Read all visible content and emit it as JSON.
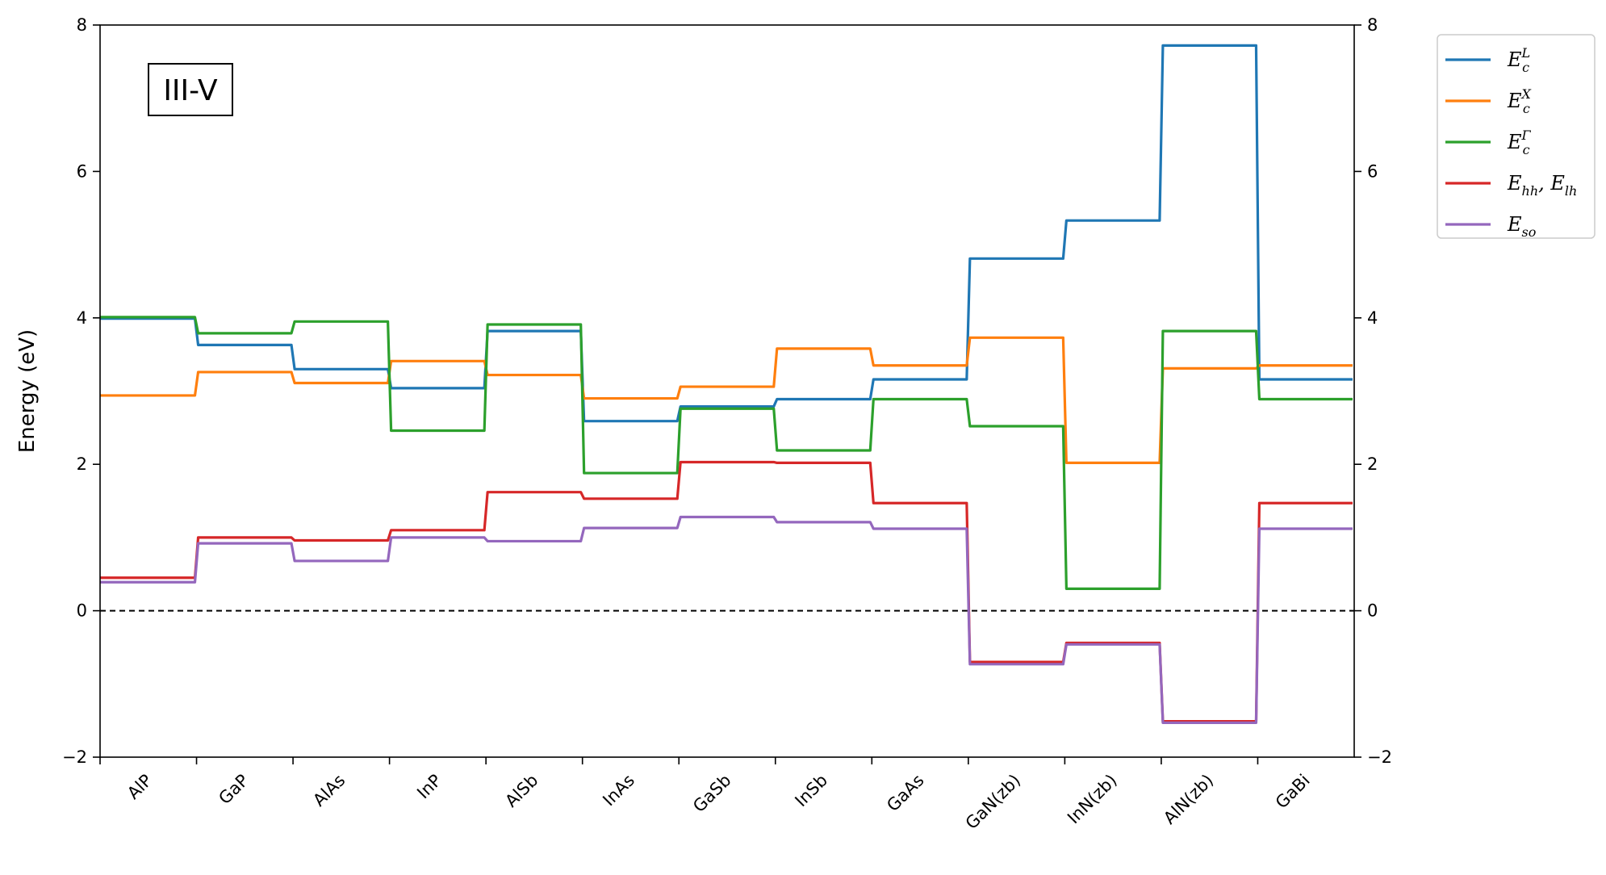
{
  "chart_data": {
    "type": "line",
    "title": "",
    "ylabel": "Energy (eV)",
    "xlabel": "",
    "ylim": [
      -2,
      8
    ],
    "yticks": [
      -2,
      0,
      2,
      4,
      6,
      8
    ],
    "ytick_labels": [
      "−2",
      "0",
      "2",
      "4",
      "6",
      "8"
    ],
    "right_axis_ticks": true,
    "zero_line": {
      "y": 0,
      "style": "dashed",
      "color": "#000000"
    },
    "annotation": "III-V",
    "legend_position": "outside-top-right",
    "categories": [
      "AlP",
      "GaP",
      "AlAs",
      "InP",
      "AlSb",
      "InAs",
      "GaSb",
      "InSb",
      "GaAs",
      "GaN(zb)",
      "InN(zb)",
      "AlN(zb)",
      "GaBi"
    ],
    "series": [
      {
        "key": "EcL",
        "legend_main": "E",
        "legend_sub": "c",
        "legend_sup": "L",
        "color": "#1f77b4",
        "values": [
          3.99,
          3.63,
          3.3,
          3.04,
          3.82,
          2.59,
          2.79,
          2.89,
          3.16,
          4.81,
          5.33,
          7.72,
          3.16
        ]
      },
      {
        "key": "EcX",
        "legend_main": "E",
        "legend_sub": "c",
        "legend_sup": "X",
        "color": "#ff7f0e",
        "values": [
          2.94,
          3.26,
          3.11,
          3.41,
          3.22,
          2.9,
          3.06,
          3.58,
          3.35,
          3.73,
          2.02,
          3.31,
          3.35
        ]
      },
      {
        "key": "EcG",
        "legend_main": "E",
        "legend_sub": "c",
        "legend_sup": "Γ",
        "color": "#2ca02c",
        "values": [
          4.01,
          3.79,
          3.95,
          2.46,
          3.91,
          1.88,
          2.76,
          2.19,
          2.89,
          2.52,
          0.3,
          3.82,
          2.89
        ]
      },
      {
        "key": "Ehh",
        "legend_main": "E",
        "legend_sub": "hh",
        "legend_mid": ", E",
        "legend_sub2": "lh",
        "color": "#d62728",
        "values": [
          0.45,
          1.0,
          0.96,
          1.1,
          1.62,
          1.53,
          2.03,
          2.02,
          1.47,
          -0.7,
          -0.44,
          -1.51,
          1.47
        ]
      },
      {
        "key": "Eso",
        "legend_main": "E",
        "legend_sub": "so",
        "color": "#9467bd",
        "values": [
          0.39,
          0.92,
          0.68,
          1.0,
          0.95,
          1.13,
          1.28,
          1.21,
          1.12,
          -0.73,
          -0.46,
          -1.53,
          1.12
        ]
      }
    ]
  }
}
